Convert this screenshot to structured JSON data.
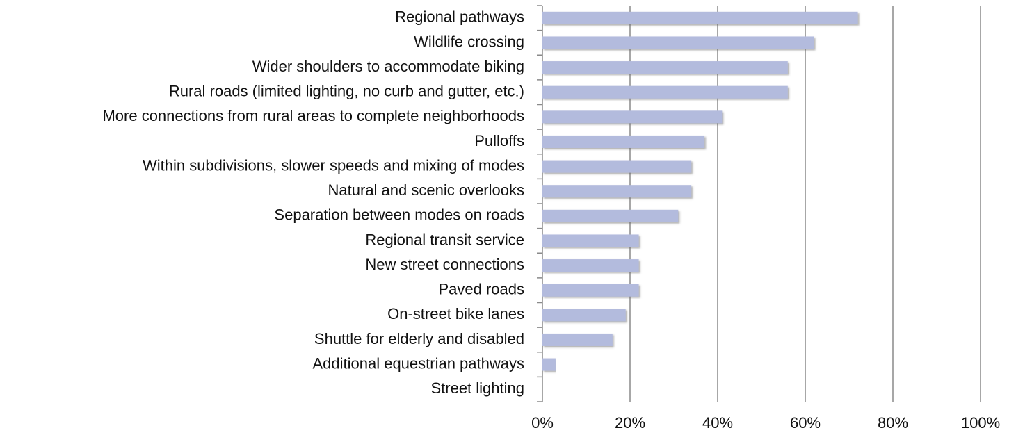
{
  "chart_data": {
    "type": "barh",
    "categories": [
      "Regional pathways",
      "Wildlife crossing",
      "Wider shoulders to accommodate biking",
      "Rural roads (limited lighting, no curb and gutter, etc.)",
      "More connections from rural areas to complete neighborhoods",
      "Pulloffs",
      "Within subdivisions, slower speeds and mixing of modes",
      "Natural and scenic overlooks",
      "Separation between modes on roads",
      "Regional transit service",
      "New street connections",
      "Paved roads",
      "On-street bike lanes",
      "Shuttle for elderly and disabled",
      "Additional equestrian pathways",
      "Street lighting"
    ],
    "values": [
      72,
      62,
      56,
      56,
      41,
      37,
      34,
      34,
      31,
      22,
      22,
      22,
      19,
      16,
      3,
      0
    ],
    "color": "#b3bbdd",
    "xlim": [
      0,
      100
    ],
    "xticks": [
      {
        "value": 0,
        "label": "0%"
      },
      {
        "value": 20,
        "label": "20%"
      },
      {
        "value": 40,
        "label": "40%"
      },
      {
        "value": 60,
        "label": "60%"
      },
      {
        "value": 80,
        "label": "80%"
      },
      {
        "value": 100,
        "label": "100%"
      }
    ],
    "grid": true
  }
}
